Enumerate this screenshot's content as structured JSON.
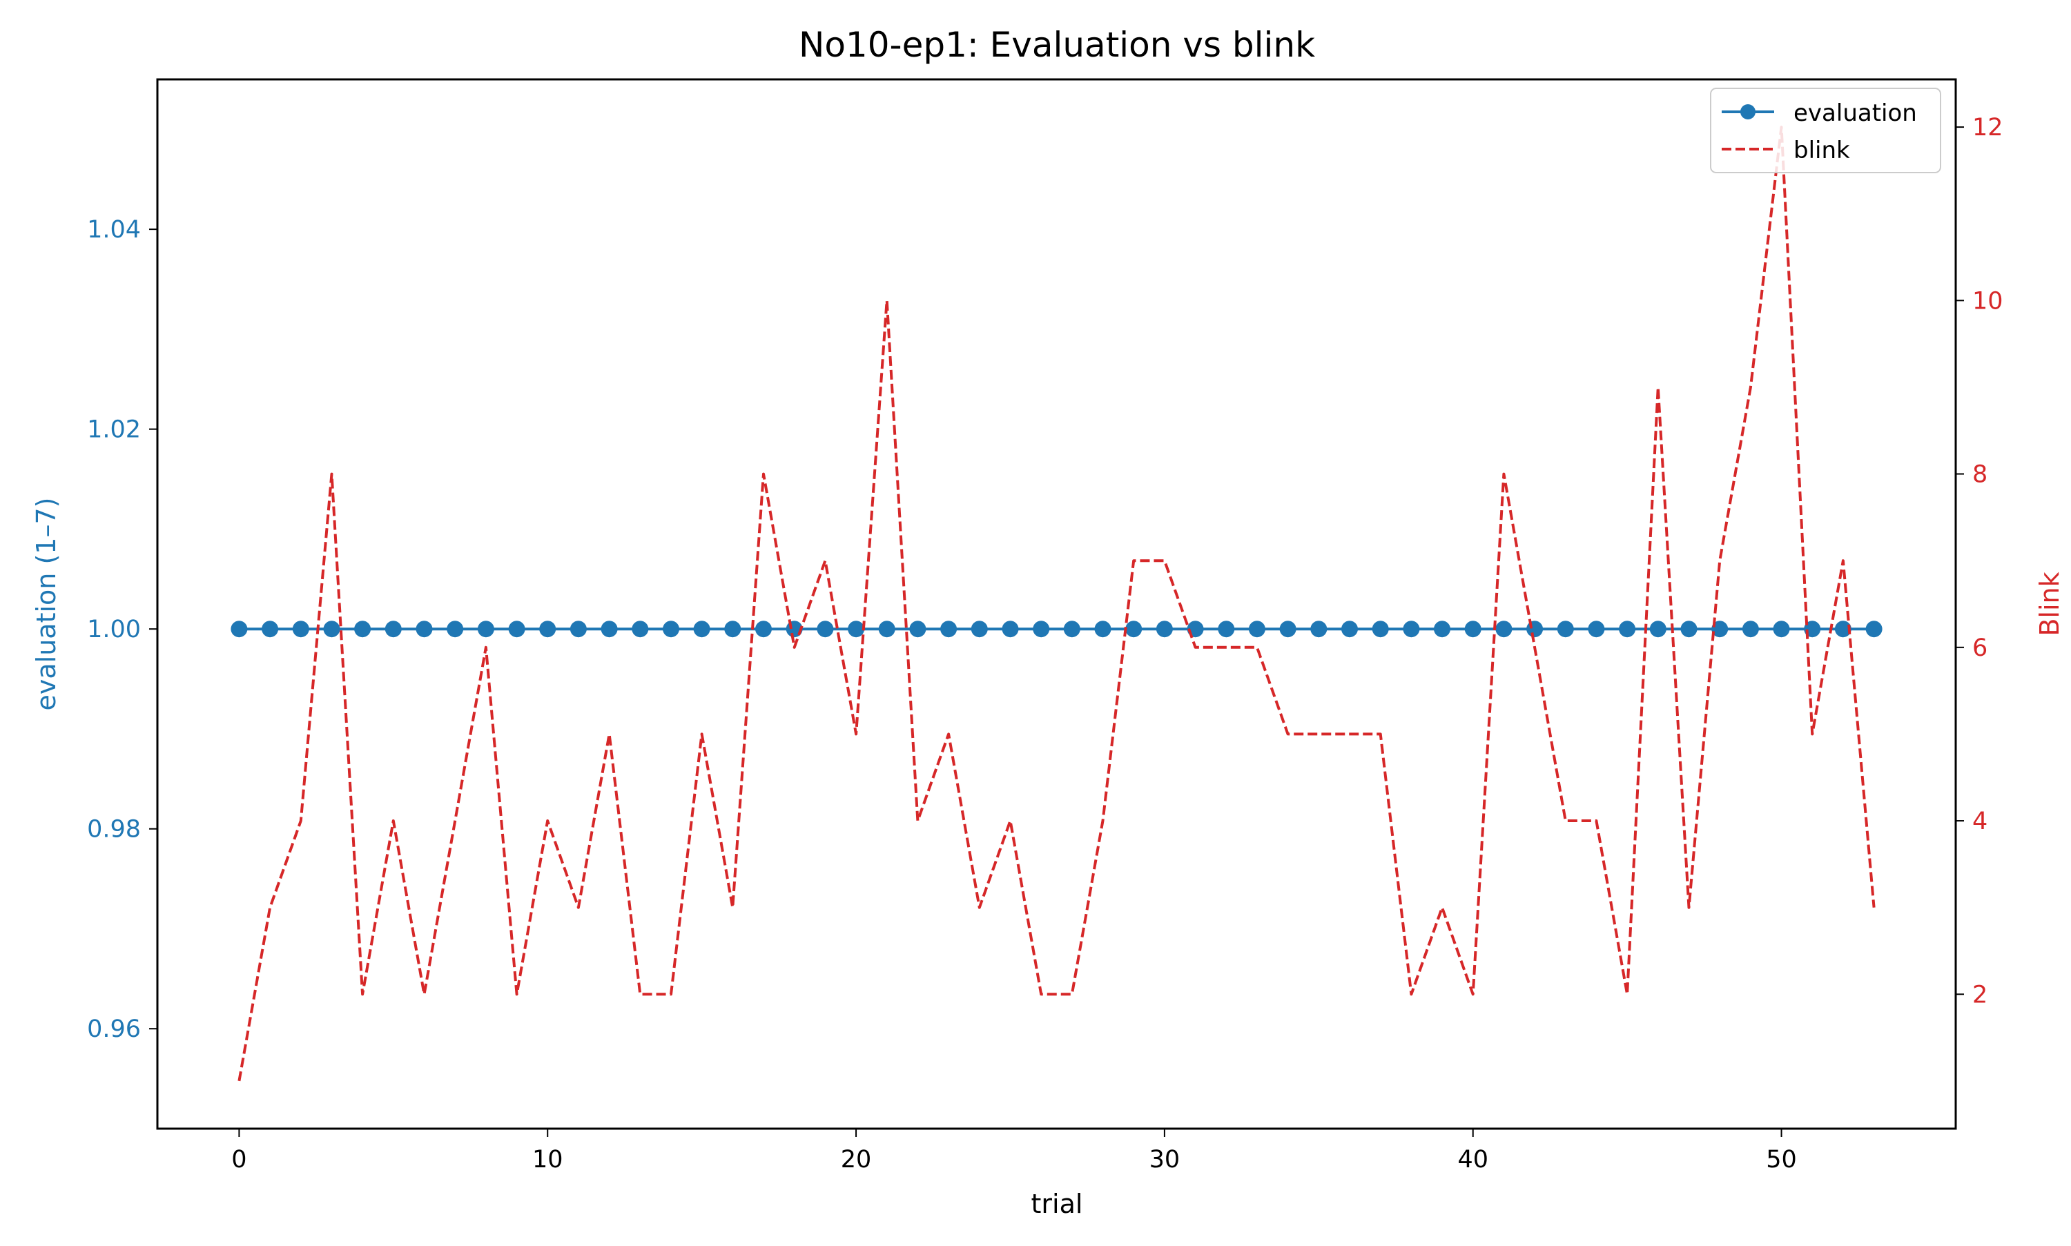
{
  "chart_data": {
    "type": "line",
    "title": "No10-ep1: Evaluation vs blink",
    "xlabel": "trial",
    "ylabel_left": "evaluation (1–7)",
    "ylabel_right": "Blink",
    "xlim": [
      -2.65,
      55.65
    ],
    "xticks": [
      0,
      10,
      20,
      30,
      40,
      50
    ],
    "ylim_left": [
      0.95,
      1.055
    ],
    "yticks_left": [
      0.96,
      0.98,
      1.0,
      1.02,
      1.04
    ],
    "ytick_labels_left": [
      "0.96",
      "0.98",
      "1.00",
      "1.02",
      "1.04"
    ],
    "ylim_right": [
      0.45,
      12.55
    ],
    "yticks_right": [
      2,
      4,
      6,
      8,
      10,
      12
    ],
    "x": [
      0,
      1,
      2,
      3,
      4,
      5,
      6,
      7,
      8,
      9,
      10,
      11,
      12,
      13,
      14,
      15,
      16,
      17,
      18,
      19,
      20,
      21,
      22,
      23,
      24,
      25,
      26,
      27,
      28,
      29,
      30,
      31,
      32,
      33,
      34,
      35,
      36,
      37,
      38,
      39,
      40,
      41,
      42,
      43,
      44,
      45,
      46,
      47,
      48,
      49,
      50,
      51,
      52,
      53
    ],
    "series": [
      {
        "name": "evaluation",
        "axis": "left",
        "color": "#1f77b4",
        "style": "solid-markers",
        "values": [
          1,
          1,
          1,
          1,
          1,
          1,
          1,
          1,
          1,
          1,
          1,
          1,
          1,
          1,
          1,
          1,
          1,
          1,
          1,
          1,
          1,
          1,
          1,
          1,
          1,
          1,
          1,
          1,
          1,
          1,
          1,
          1,
          1,
          1,
          1,
          1,
          1,
          1,
          1,
          1,
          1,
          1,
          1,
          1,
          1,
          1,
          1,
          1,
          1,
          1,
          1,
          1,
          1,
          1
        ]
      },
      {
        "name": "blink",
        "axis": "right",
        "color": "#d62728",
        "style": "dashed",
        "values": [
          1,
          3,
          4,
          8,
          2,
          4,
          2,
          4,
          6,
          2,
          4,
          3,
          5,
          2,
          2,
          5,
          3,
          8,
          6,
          7,
          5,
          10,
          4,
          5,
          3,
          4,
          2,
          2,
          4,
          7,
          7,
          6,
          6,
          6,
          5,
          5,
          5,
          5,
          2,
          3,
          2,
          8,
          6,
          4,
          4,
          2,
          9,
          3,
          7,
          9,
          12,
          5,
          7,
          3
        ]
      }
    ],
    "legend": {
      "position": "top-right",
      "entries": [
        "evaluation",
        "blink"
      ]
    },
    "grid": false,
    "colors": {
      "left_axis": "#1f77b4",
      "right_axis": "#d62728"
    }
  }
}
